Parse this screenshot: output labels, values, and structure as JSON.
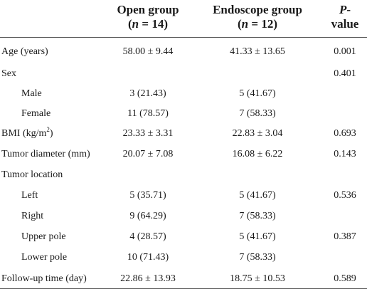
{
  "table": {
    "header": {
      "columns": [
        {
          "line1": "Open group",
          "line2": [
            "(",
            "n",
            " = 14)"
          ]
        },
        {
          "line1": "Endoscope group",
          "line2": [
            "(",
            "n",
            " = 12)"
          ]
        },
        {
          "line1": [
            "P",
            "-"
          ],
          "line2": "value"
        }
      ]
    },
    "rows": [
      {
        "label": "Age (years)",
        "cells": [
          "58.00 ± 9.44",
          "41.33 ± 13.65",
          "0.001"
        ]
      },
      {
        "label": "Sex",
        "cells": [
          null,
          null,
          "0.401"
        ]
      },
      {
        "label": "Male",
        "indent": true,
        "cells": [
          "3 (21.43)",
          "5 (41.67)",
          null
        ]
      },
      {
        "label": "Female",
        "indent": true,
        "cells": [
          "11 (78.57)",
          "7 (58.33)",
          null
        ]
      },
      {
        "label": [
          "BMI (kg/m",
          "2",
          ")"
        ],
        "cells": [
          "23.33 ± 3.31",
          "22.83 ± 3.04",
          "0.693"
        ]
      },
      {
        "label": "Tumor diameter (mm)",
        "cells": [
          "20.07 ± 7.08",
          "16.08 ± 6.22",
          "0.143"
        ]
      },
      {
        "label": "Tumor location",
        "cells": [
          null,
          null,
          null
        ]
      },
      {
        "label": "Left",
        "indent": true,
        "cells": [
          "5 (35.71)",
          "5 (41.67)",
          "0.536"
        ]
      },
      {
        "label": "Right",
        "indent": true,
        "cells": [
          "9 (64.29)",
          "7 (58.33)",
          null
        ]
      },
      {
        "label": "Upper pole",
        "indent": true,
        "cells": [
          "4 (28.57)",
          "5 (41.67)",
          "0.387"
        ]
      },
      {
        "label": "Lower pole",
        "indent": true,
        "cells": [
          "10 (71.43)",
          "7 (58.33)",
          null
        ]
      },
      {
        "label": "Follow-up time (day)",
        "cells": [
          "22.86 ± 13.93",
          "18.75 ± 10.53",
          "0.589"
        ]
      }
    ]
  }
}
